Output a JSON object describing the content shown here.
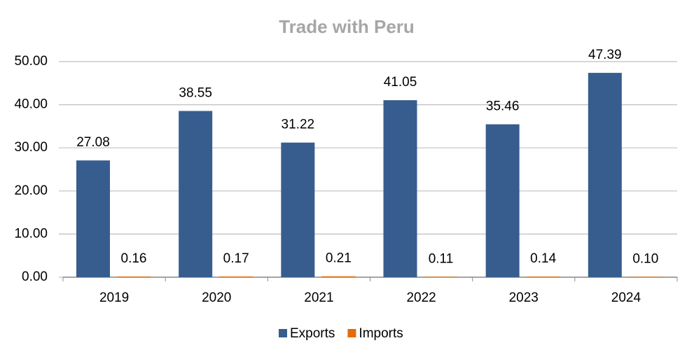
{
  "chart_data": {
    "type": "bar",
    "title": "Trade with Peru",
    "categories": [
      "2019",
      "2020",
      "2021",
      "2022",
      "2023",
      "2024"
    ],
    "series": [
      {
        "name": "Exports",
        "color": "#375d8e",
        "values": [
          27.08,
          38.55,
          31.22,
          41.05,
          35.46,
          47.39
        ]
      },
      {
        "name": "Imports",
        "color": "#e36c0a",
        "values": [
          0.16,
          0.17,
          0.21,
          0.11,
          0.14,
          0.1
        ],
        "value_labels": [
          "0.16",
          "0.17",
          "0.21",
          "0.11",
          "0.14",
          "0.10"
        ]
      }
    ],
    "ylim": [
      0,
      50
    ],
    "yticks": [
      {
        "value": 0,
        "label": "0.00"
      },
      {
        "value": 10,
        "label": "10.00"
      },
      {
        "value": 20,
        "label": "20.00"
      },
      {
        "value": 30,
        "label": "30.00"
      },
      {
        "value": 40,
        "label": "40.00"
      },
      {
        "value": 50,
        "label": "50.00"
      }
    ],
    "grid": true,
    "legend": "bottom"
  }
}
